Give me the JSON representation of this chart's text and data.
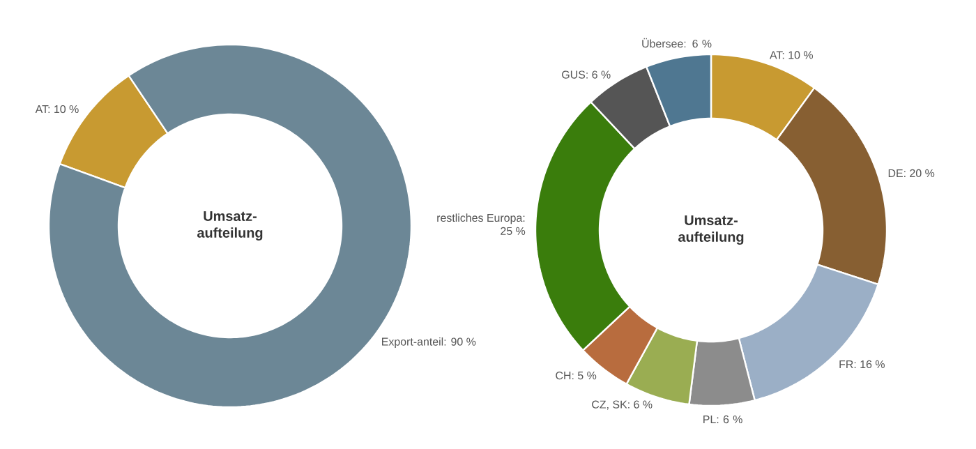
{
  "chart_data": [
    {
      "type": "donut",
      "categories": [
        "AT: 10 %",
        "Export-anteil: 90 %"
      ],
      "values": [
        10,
        90
      ],
      "colors": [
        "#c89a31",
        "#6c8796"
      ],
      "annotations": [
        "Umsatz-aufteilung"
      ]
    },
    {
      "type": "donut",
      "categories": [
        "AT: 10 %",
        "DE: 20 %",
        "FR: 16 %",
        "PL: 6 %",
        "CZ, SK: 6 %",
        "CH: 5 %",
        "restliches Europa: 25 %",
        "GUS: 6 %",
        "Übersee: 6 %"
      ],
      "values": [
        10,
        20,
        16,
        6,
        6,
        5,
        25,
        6,
        6
      ],
      "colors": [
        "#c89a31",
        "#875f32",
        "#9bafc6",
        "#8c8c8c",
        "#9aad52",
        "#b86c3e",
        "#3a7d0c",
        "#555555",
        "#4f7791"
      ],
      "annotations": [
        "Umsatz-aufteilung"
      ]
    }
  ]
}
